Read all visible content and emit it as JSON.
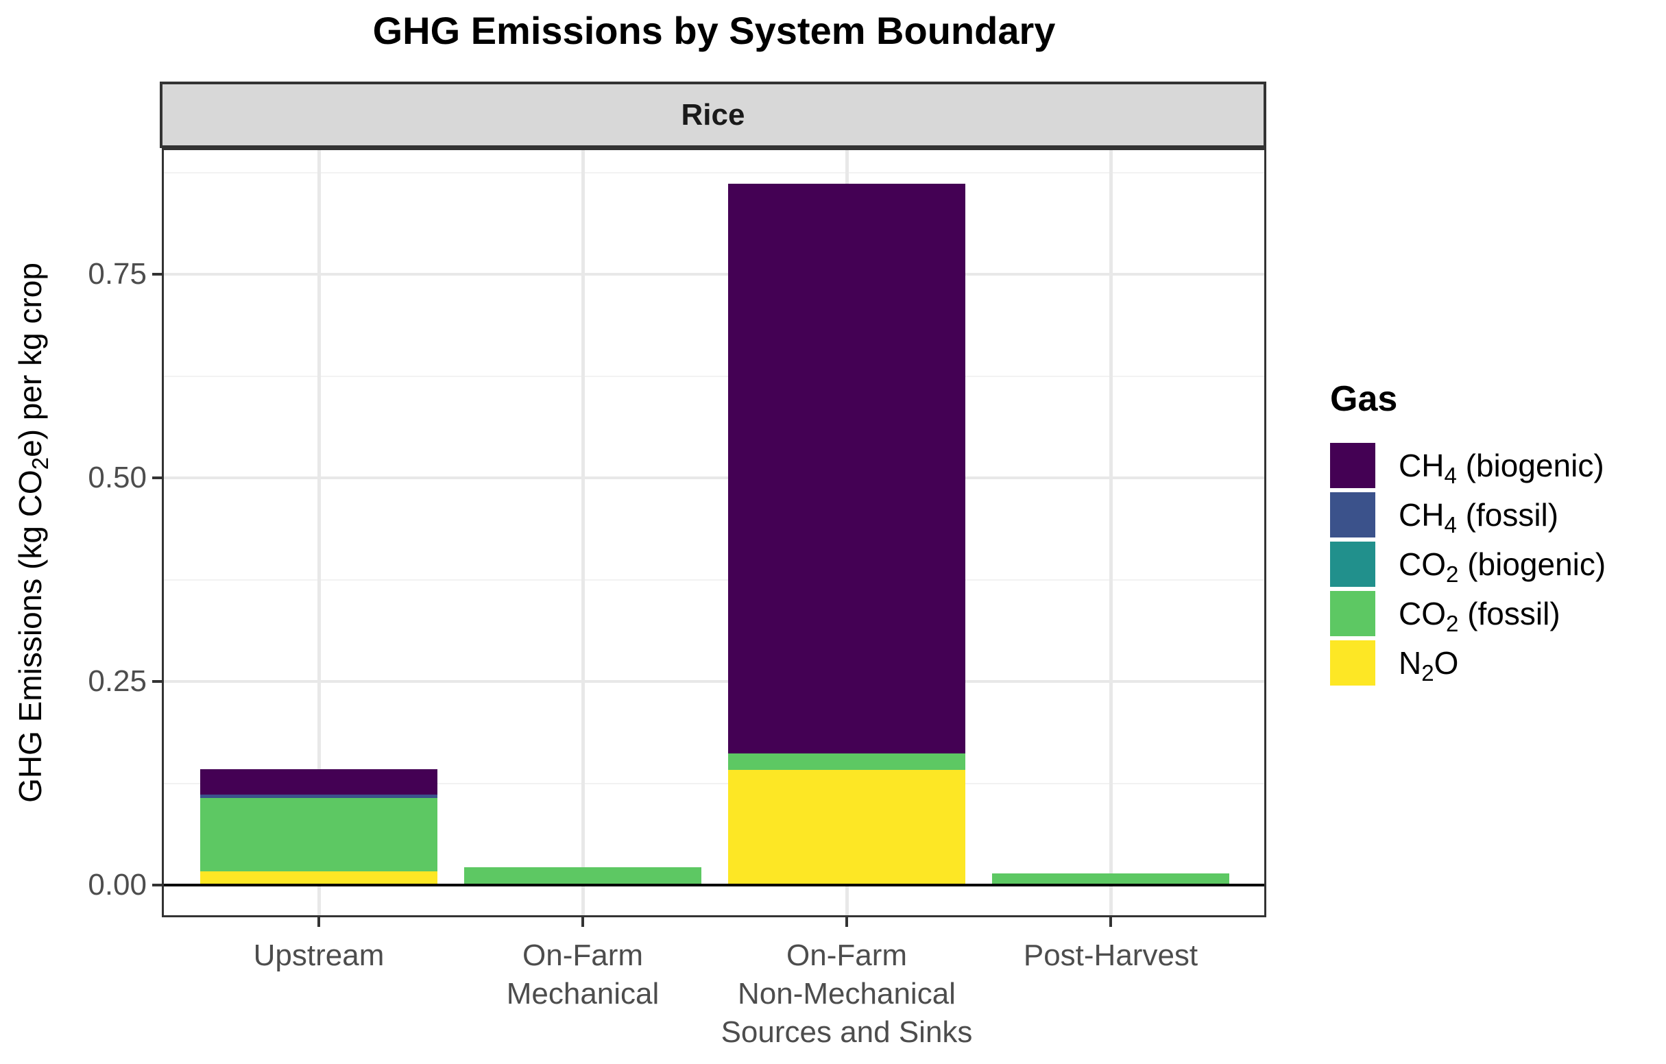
{
  "figure": {
    "title": "GHG Emissions by System Boundary",
    "facet_label": "Rice",
    "legend_title": "Gas"
  },
  "chart_data": {
    "type": "bar",
    "stacked": true,
    "title": "GHG Emissions by System Boundary",
    "facet_label": "Rice",
    "xlabel": "",
    "ylabel": "GHG Emissions (kg CO~2~e) per kg crop",
    "legend_title": "Gas",
    "legend_position": "right",
    "grid": true,
    "categories": [
      "Upstream",
      "On-Farm Mechanical",
      "On-Farm Non-Mechanical Sources and Sinks",
      "Post-Harvest"
    ],
    "category_display_lines": [
      [
        "Upstream"
      ],
      [
        "On-Farm",
        "Mechanical"
      ],
      [
        "On-Farm",
        "Non-Mechanical",
        "Sources and Sinks"
      ],
      [
        "Post-Harvest"
      ]
    ],
    "series": [
      {
        "name": "CH~4~ (biogenic)",
        "color": "#440154",
        "values": [
          0.031,
          0,
          0.699,
          0
        ]
      },
      {
        "name": "CH~4~ (fossil)",
        "color": "#3B528B",
        "values": [
          0.004,
          0,
          0,
          0
        ]
      },
      {
        "name": "CO~2~ (biogenic)",
        "color": "#21908C",
        "values": [
          0,
          0,
          0,
          0
        ]
      },
      {
        "name": "CO~2~ (fossil)",
        "color": "#5DC863",
        "values": [
          0.09,
          0.02,
          0.021,
          0.014
        ]
      },
      {
        "name": "N~2~O",
        "color": "#FDE725",
        "values": [
          0.017,
          0.002,
          0.141,
          0
        ]
      }
    ],
    "stack_order_bottom_to_top": [
      "N~2~O",
      "CO~2~ (fossil)",
      "CO~2~ (biogenic)",
      "CH~4~ (fossil)",
      "CH~4~ (biogenic)"
    ],
    "totals": [
      0.142,
      0.022,
      0.861,
      0.014
    ],
    "y_tick_labels": [
      "0.00",
      "0.25",
      "0.50",
      "0.75"
    ],
    "y_tick_values": [
      0,
      0.25,
      0.5,
      0.75
    ],
    "y_minor_tick_values": [
      0.125,
      0.375,
      0.625,
      0.875
    ],
    "ylim": [
      0,
      0.905
    ]
  }
}
